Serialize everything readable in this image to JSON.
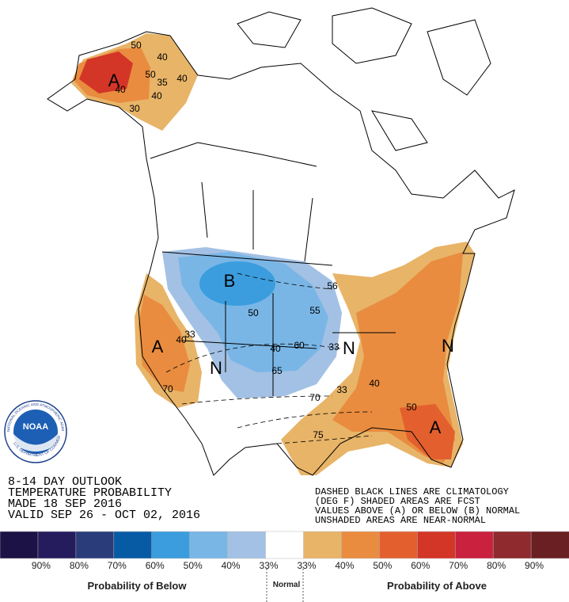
{
  "outlook": {
    "lines": [
      "8-14 DAY OUTLOOK",
      "TEMPERATURE PROBABILITY",
      "MADE  18 SEP 2016",
      "VALID  SEP 26 - OCT 02, 2016"
    ]
  },
  "notes": {
    "lines": [
      "DASHED BLACK LINES ARE CLIMATOLOGY",
      "(DEG F) SHADED AREAS ARE FCST",
      "VALUES ABOVE (A) OR BELOW (B) NORMAL",
      "UNSHADED AREAS ARE NEAR-NORMAL"
    ]
  },
  "logo": {
    "name": "NOAA",
    "ring_top": "NATIONAL OCEANIC AND ATMOSPHERIC ADMINISTRATION",
    "ring_bottom": "U.S. DEPARTMENT OF COMMERCE"
  },
  "map_labels": [
    "A",
    "40",
    "50",
    "35",
    "40",
    "40",
    "30",
    "40",
    "50",
    "B",
    "50",
    "55",
    "56",
    "40",
    "60",
    "65",
    "33",
    "N",
    "A",
    "40",
    "33",
    "70",
    "N",
    "33",
    "40",
    "70",
    "75",
    "50",
    "A",
    "N"
  ],
  "legend": {
    "below_title": "Probability of Below",
    "normal_title": "Normal",
    "above_title": "Probability of Above",
    "colors": [
      "#1c1245",
      "#251c5e",
      "#2a3d7a",
      "#075ba5",
      "#3b9ddd",
      "#79b6e6",
      "#a3c1e4",
      "#ffffff",
      "#e8b468",
      "#e98c3f",
      "#e3602e",
      "#d33527",
      "#c9213e",
      "#8f2a2f",
      "#6a1f23"
    ],
    "labels": [
      "90%",
      "80%",
      "70%",
      "60%",
      "50%",
      "40%",
      "33%",
      "33%",
      "40%",
      "50%",
      "60%",
      "70%",
      "80%",
      "90%"
    ]
  }
}
